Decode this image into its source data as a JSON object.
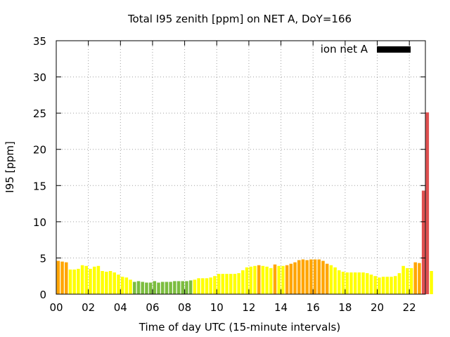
{
  "chart_data": {
    "type": "bar",
    "title": "Total I95 zenith [ppm] on NET A, DoY=166",
    "xlabel": "Time of day UTC (15-minute intervals)",
    "ylabel": "I95 [ppm]",
    "ylim": [
      0,
      35
    ],
    "xlim": [
      0,
      23
    ],
    "yticks": [
      0,
      5,
      10,
      15,
      20,
      25,
      30,
      35
    ],
    "xticks": [
      0,
      2,
      4,
      6,
      8,
      10,
      12,
      14,
      16,
      18,
      20,
      22
    ],
    "xtick_labels": [
      "00",
      "02",
      "04",
      "06",
      "08",
      "10",
      "12",
      "14",
      "16",
      "18",
      "20",
      "22"
    ],
    "grid": true,
    "legend": {
      "label": "ion net A",
      "position": "top-right",
      "color": "#000000"
    },
    "interval_hours": 0.25,
    "color_scale": {
      "green": "#7cbd3f",
      "yellow": "#ffff00",
      "orange": "#ffa500",
      "red": "#e05050"
    },
    "values": [
      4.6,
      4.5,
      4.4,
      3.4,
      3.4,
      3.5,
      4.0,
      3.9,
      3.5,
      3.8,
      3.9,
      3.2,
      3.1,
      3.2,
      3.0,
      2.7,
      2.4,
      2.3,
      2.0,
      1.7,
      1.8,
      1.7,
      1.6,
      1.6,
      1.8,
      1.6,
      1.7,
      1.7,
      1.7,
      1.8,
      1.8,
      1.8,
      1.8,
      1.9,
      2.0,
      2.2,
      2.2,
      2.2,
      2.3,
      2.5,
      2.8,
      2.8,
      2.8,
      2.8,
      2.8,
      2.9,
      3.3,
      3.7,
      3.8,
      3.9,
      4.0,
      3.9,
      3.8,
      3.6,
      4.1,
      3.9,
      3.9,
      4.0,
      4.2,
      4.4,
      4.7,
      4.8,
      4.7,
      4.8,
      4.8,
      4.8,
      4.6,
      4.2,
      4.0,
      3.7,
      3.3,
      3.1,
      3.0,
      3.0,
      3.0,
      3.0,
      3.0,
      2.9,
      2.7,
      2.5,
      2.3,
      2.4,
      2.4,
      2.4,
      2.5,
      2.9,
      3.9,
      3.6,
      3.6,
      4.4,
      4.3,
      14.3,
      25.1,
      3.2
    ],
    "colors": [
      "orange",
      "orange",
      "orange",
      "yellow",
      "yellow",
      "yellow",
      "yellow",
      "yellow",
      "yellow",
      "yellow",
      "yellow",
      "yellow",
      "yellow",
      "yellow",
      "yellow",
      "yellow",
      "yellow",
      "yellow",
      "yellow",
      "green",
      "green",
      "green",
      "green",
      "green",
      "green",
      "green",
      "green",
      "green",
      "green",
      "green",
      "green",
      "green",
      "green",
      "green",
      "yellow",
      "yellow",
      "yellow",
      "yellow",
      "yellow",
      "yellow",
      "yellow",
      "yellow",
      "yellow",
      "yellow",
      "yellow",
      "yellow",
      "yellow",
      "yellow",
      "yellow",
      "yellow",
      "orange",
      "yellow",
      "yellow",
      "yellow",
      "orange",
      "yellow",
      "yellow",
      "orange",
      "orange",
      "orange",
      "orange",
      "orange",
      "orange",
      "orange",
      "orange",
      "orange",
      "orange",
      "orange",
      "yellow",
      "yellow",
      "yellow",
      "yellow",
      "yellow",
      "yellow",
      "yellow",
      "yellow",
      "yellow",
      "yellow",
      "yellow",
      "yellow",
      "yellow",
      "yellow",
      "yellow",
      "yellow",
      "yellow",
      "yellow",
      "yellow",
      "yellow",
      "yellow",
      "orange",
      "orange",
      "red",
      "red",
      "yellow"
    ]
  }
}
